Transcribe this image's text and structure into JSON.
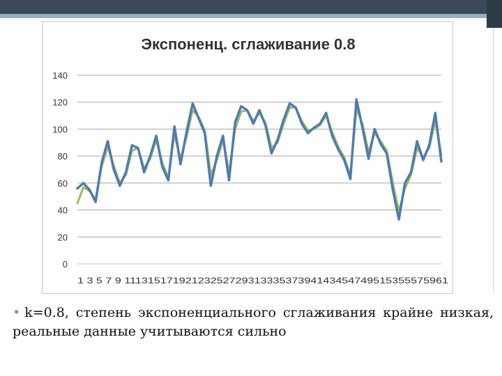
{
  "slide": {
    "bullet_marker": "•",
    "bullet_text": "k=0.8, степень экспоненциального сглаживания крайне низкая, реальные данные учитываются сильно"
  },
  "chart_data": {
    "type": "line",
    "title": "Экспоненц. сглаживание 0.8",
    "xlabel": "",
    "ylabel": "",
    "ylim": [
      0,
      140
    ],
    "y_ticks": [
      0,
      20,
      40,
      60,
      80,
      100,
      120,
      140
    ],
    "x_tick_text": "1 3 5 7 9 1113151719212325272931333537394143454749515355575961",
    "x": [
      1,
      2,
      3,
      4,
      5,
      6,
      7,
      8,
      9,
      10,
      11,
      12,
      13,
      14,
      15,
      16,
      17,
      18,
      19,
      20,
      21,
      22,
      23,
      24,
      25,
      26,
      27,
      28,
      29,
      30,
      31,
      32,
      33,
      34,
      35,
      36,
      37,
      38,
      39,
      40,
      41,
      42,
      43,
      44,
      45,
      46,
      47,
      48,
      49,
      50,
      51,
      52,
      53,
      54,
      55,
      56,
      57,
      58,
      59,
      60,
      61
    ],
    "grid": true,
    "legend": "none",
    "series": [
      {
        "color": "#4f7cb0",
        "values": [
          56,
          60,
          55,
          46,
          75,
          91,
          70,
          58,
          68,
          88,
          86,
          68,
          80,
          95,
          72,
          62,
          102,
          74,
          98,
          119,
          108,
          97,
          58,
          80,
          95,
          62,
          105,
          117,
          114,
          104,
          114,
          103,
          82,
          92,
          107,
          119,
          116,
          104,
          97,
          101,
          104,
          112,
          95,
          85,
          77,
          63,
          122,
          101,
          78,
          100,
          89,
          82,
          55,
          33,
          60,
          68,
          91,
          77,
          88,
          112,
          76
        ]
      },
      {
        "color": "#9bbb59",
        "values": [
          45,
          57,
          54,
          48,
          72,
          87,
          73,
          60,
          66,
          84,
          86,
          71,
          78,
          92,
          75,
          64,
          96,
          78,
          94,
          114,
          109,
          99,
          66,
          77,
          92,
          68,
          100,
          113,
          114,
          106,
          112,
          105,
          86,
          90,
          104,
          116,
          116,
          106,
          99,
          100,
          103,
          110,
          98,
          87,
          79,
          66,
          115,
          104,
          83,
          97,
          91,
          84,
          60,
          39,
          56,
          66,
          86,
          79,
          86,
          106,
          81
        ]
      }
    ]
  }
}
